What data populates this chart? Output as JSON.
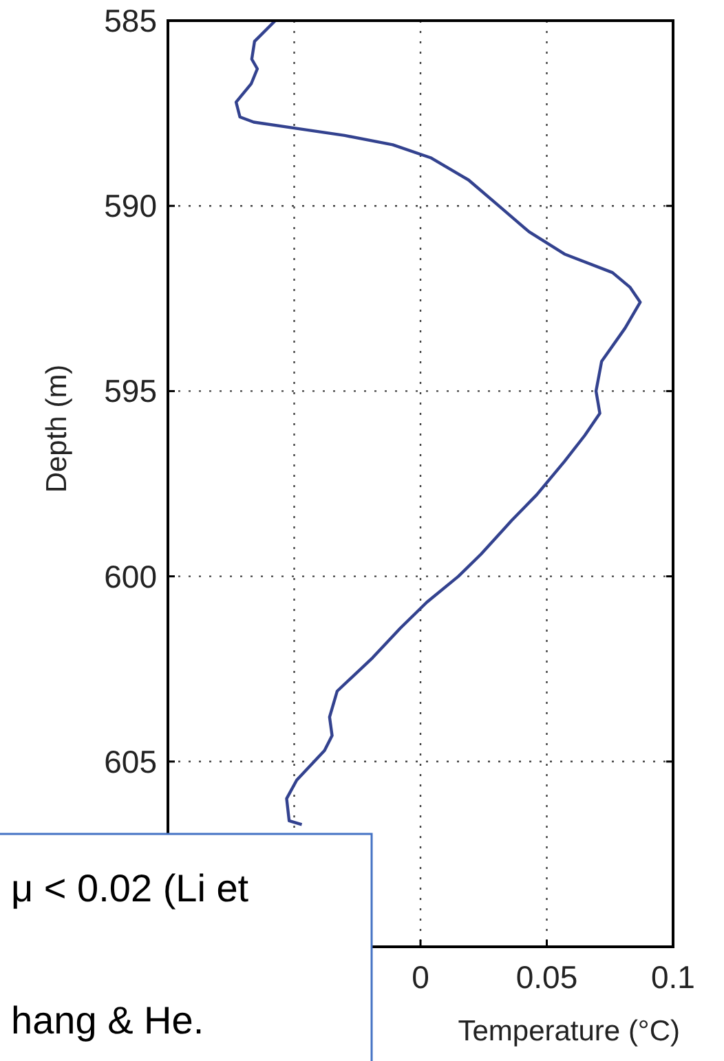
{
  "chart_data": {
    "type": "line",
    "xlabel": "Temperature (°C)",
    "ylabel": "Depth (m)",
    "xlim": [
      -0.1,
      0.1
    ],
    "xticks": [
      {
        "value": -0.1,
        "label": null
      },
      {
        "value": -0.05,
        "label": null
      },
      0,
      0.05,
      0.1
    ],
    "ylim": [
      610,
      585
    ],
    "yticks": [
      585,
      590,
      595,
      600,
      605,
      {
        "value": 610,
        "label": null
      }
    ],
    "grid": true,
    "series": [
      {
        "color": "#33428f",
        "x": [
          -0.0575,
          -0.0657,
          -0.0668,
          -0.0646,
          -0.067,
          -0.073,
          -0.0715,
          -0.066,
          -0.05,
          -0.03,
          -0.011,
          0.004,
          0.019,
          0.031,
          0.043,
          0.057,
          0.076,
          0.083,
          0.087,
          0.081,
          0.0717,
          0.0695,
          0.071,
          0.065,
          0.057,
          0.046,
          0.036,
          0.024,
          0.015,
          0.0025,
          -0.008,
          -0.019,
          -0.033,
          -0.036,
          -0.035,
          -0.038,
          -0.049,
          -0.053,
          -0.052,
          -0.047
        ],
        "values": [
          585,
          585.56,
          586.04,
          586.3,
          586.7,
          587.2,
          587.6,
          587.74,
          587.9,
          588.1,
          588.35,
          588.7,
          589.3,
          590,
          590.7,
          591.3,
          591.8,
          592.2,
          592.6,
          593.3,
          594.2,
          595,
          595.6,
          596.2,
          596.9,
          597.8,
          598.5,
          599.4,
          600,
          600.7,
          601.4,
          602.2,
          603.1,
          603.8,
          604.3,
          604.7,
          605.5,
          606,
          606.6,
          606.7
        ]
      }
    ],
    "annotations": [
      "μ < 0.02 (Li et",
      "hang & He."
    ]
  }
}
